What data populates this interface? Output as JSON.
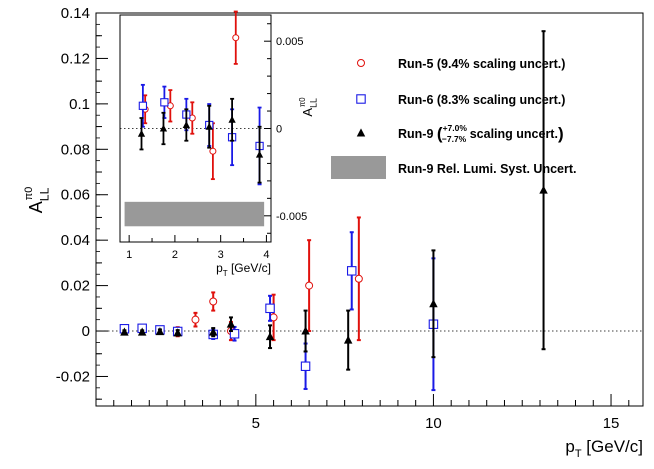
{
  "chart_data": [
    {
      "type": "scatter",
      "title": "",
      "xlabel": "p_T [GeV/c]",
      "ylabel": "A_LL^{π0}",
      "xlim": [
        0.5,
        15.9
      ],
      "ylim": [
        -0.033,
        0.14
      ],
      "xticks": [
        "5",
        "10",
        "15"
      ],
      "yticks": [
        "-0.02",
        "0",
        "0.02",
        "0.04",
        "0.06",
        "0.08",
        "0.1",
        "0.12",
        "0.14"
      ],
      "reference_line": 0,
      "legend": {
        "placement": "top-right",
        "entries": [
          {
            "series": "run5",
            "label": "Run-5 (9.4% scaling uncert.)"
          },
          {
            "series": "run6",
            "label": "Run-6 (8.3% scaling uncert.)"
          },
          {
            "series": "run9",
            "label_prefix": "Run-9",
            "label_sup": "+7.0%",
            "label_sub": "−7.7%",
            "label_suffix": "scaling uncert."
          },
          {
            "series": "band",
            "label": "Run-9 Rel. Lumi. Syst. Uncert."
          }
        ]
      },
      "series": [
        {
          "id": "run5",
          "color": "#e0100c",
          "marker": "open-circle",
          "points": [
            {
              "x": 1.3,
              "y": 0.001,
              "err": 0.0015
            },
            {
              "x": 1.8,
              "y": 0.0008,
              "err": 0.0015
            },
            {
              "x": 2.3,
              "y": 0.0005,
              "err": 0.0015
            },
            {
              "x": 2.8,
              "y": -0.0003,
              "err": 0.002
            },
            {
              "x": 3.3,
              "y": 0.005,
              "err": 0.003
            },
            {
              "x": 3.8,
              "y": 0.013,
              "err": 0.004
            },
            {
              "x": 4.3,
              "y": 0.0,
              "err": 0.004
            },
            {
              "x": 5.5,
              "y": 0.006,
              "err": 0.01
            },
            {
              "x": 6.5,
              "y": 0.02,
              "err": 0.02
            },
            {
              "x": 7.9,
              "y": 0.023,
              "err": 0.027
            }
          ]
        },
        {
          "id": "run6",
          "color": "#1a1ae6",
          "marker": "open-square",
          "points": [
            {
              "x": 1.3,
              "y": 0.001,
              "err": 0.001
            },
            {
              "x": 1.8,
              "y": 0.0012,
              "err": 0.001
            },
            {
              "x": 2.3,
              "y": 0.0005,
              "err": 0.001
            },
            {
              "x": 2.8,
              "y": -0.0002,
              "err": 0.0015
            },
            {
              "x": 3.8,
              "y": -0.0015,
              "err": 0.002
            },
            {
              "x": 4.4,
              "y": -0.0012,
              "err": 0.003
            },
            {
              "x": 5.4,
              "y": 0.01,
              "err": 0.0055
            },
            {
              "x": 6.4,
              "y": -0.0155,
              "err": 0.01
            },
            {
              "x": 7.7,
              "y": 0.0265,
              "err": 0.017
            },
            {
              "x": 10.0,
              "y": 0.003,
              "err": 0.029
            }
          ]
        },
        {
          "id": "run9",
          "color": "#000000",
          "marker": "filled-triangle",
          "points": [
            {
              "x": 1.3,
              "y": -0.0005,
              "err": 0.0008
            },
            {
              "x": 1.8,
              "y": -0.0005,
              "err": 0.0008
            },
            {
              "x": 2.3,
              "y": -0.0003,
              "err": 0.001
            },
            {
              "x": 2.8,
              "y": -0.0008,
              "err": 0.0012
            },
            {
              "x": 3.8,
              "y": -0.0005,
              "err": 0.0018
            },
            {
              "x": 4.3,
              "y": 0.003,
              "err": 0.003
            },
            {
              "x": 5.4,
              "y": -0.0025,
              "err": 0.005
            },
            {
              "x": 6.4,
              "y": 0.0,
              "err": 0.009
            },
            {
              "x": 7.6,
              "y": -0.004,
              "err": 0.013
            },
            {
              "x": 10.0,
              "y": 0.012,
              "err": 0.0235
            },
            {
              "x": 13.1,
              "y": 0.062,
              "err": 0.07
            }
          ]
        }
      ]
    },
    {
      "type": "scatter",
      "inset": true,
      "xlabel": "p_T [GeV/c]",
      "ylabel": "A_LL^{π0}",
      "xlim": [
        0.8,
        4.1
      ],
      "ylim": [
        -0.0065,
        0.0065
      ],
      "xticks": [
        "1",
        "2",
        "3",
        "4"
      ],
      "yticks_right": [
        "-0.005",
        "0",
        "0.005"
      ],
      "reference_line": 0,
      "band": {
        "x": [
          0.9,
          3.95
        ],
        "y": [
          -0.0056,
          -0.0042
        ],
        "color": "#999999"
      },
      "series": [
        {
          "id": "run5",
          "color": "#e0100c",
          "marker": "open-circle",
          "points": [
            {
              "x": 1.35,
              "y": 0.0011,
              "err": 0.0008
            },
            {
              "x": 1.9,
              "y": 0.0013,
              "err": 0.0009
            },
            {
              "x": 2.38,
              "y": 0.0006,
              "err": 0.0009
            },
            {
              "x": 2.83,
              "y": -0.0013,
              "err": 0.0016
            },
            {
              "x": 3.33,
              "y": 0.0052,
              "err": 0.0015
            }
          ]
        },
        {
          "id": "run6",
          "color": "#1a1ae6",
          "marker": "open-square",
          "points": [
            {
              "x": 1.3,
              "y": 0.0013,
              "err": 0.0012
            },
            {
              "x": 1.77,
              "y": 0.0015,
              "err": 0.0009
            },
            {
              "x": 2.25,
              "y": 0.0008,
              "err": 0.0009
            },
            {
              "x": 2.75,
              "y": 0.0002,
              "err": 0.0012
            },
            {
              "x": 3.25,
              "y": -0.0005,
              "err": 0.0016
            },
            {
              "x": 3.85,
              "y": -0.001,
              "err": 0.0022
            }
          ]
        },
        {
          "id": "run9",
          "color": "#000000",
          "marker": "filled-triangle",
          "points": [
            {
              "x": 1.27,
              "y": -0.0003,
              "err": 0.0009
            },
            {
              "x": 1.75,
              "y": 0.0,
              "err": 0.0009
            },
            {
              "x": 2.25,
              "y": 0.0002,
              "err": 0.0009
            },
            {
              "x": 2.75,
              "y": 0.0001,
              "err": 0.0012
            },
            {
              "x": 3.25,
              "y": 0.0005,
              "err": 0.0012
            },
            {
              "x": 3.85,
              "y": -0.0015,
              "err": 0.0016
            }
          ]
        }
      ]
    }
  ]
}
